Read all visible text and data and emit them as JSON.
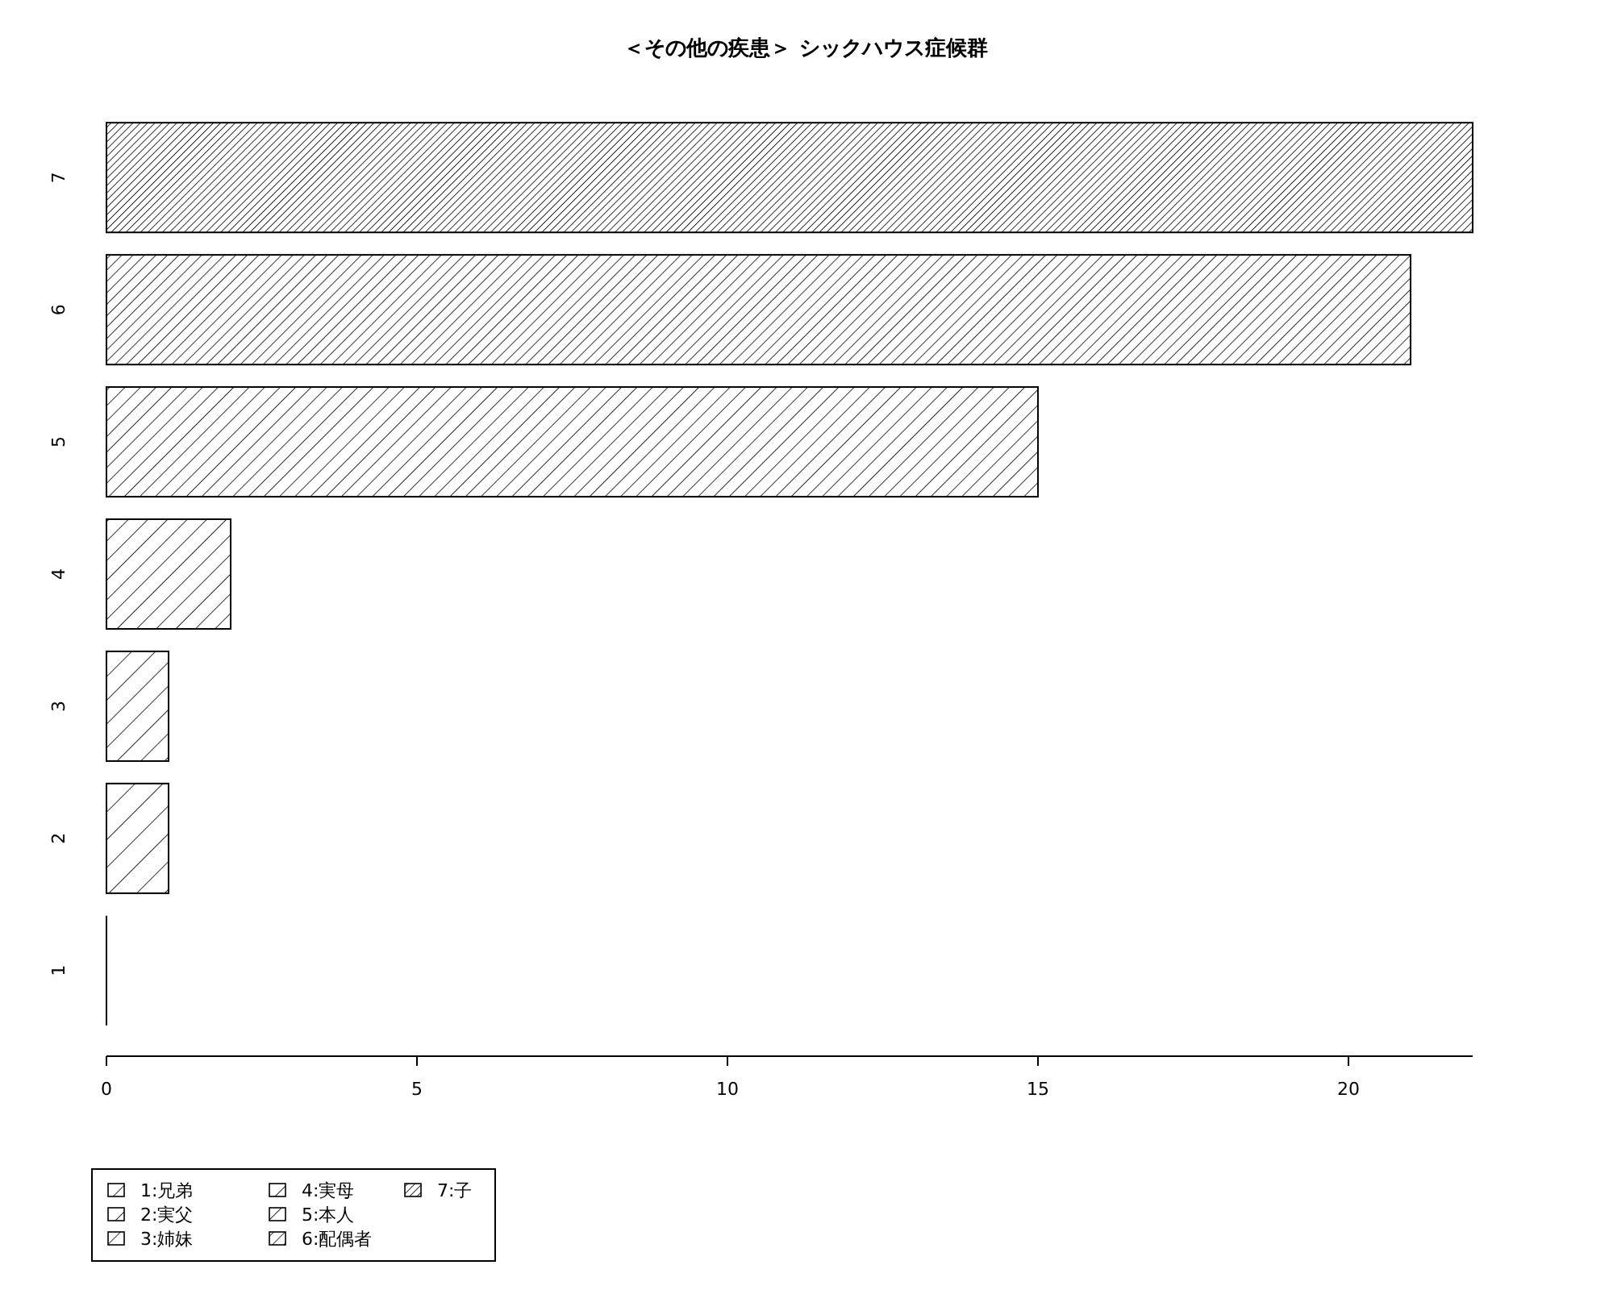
{
  "chart_data": {
    "type": "bar",
    "orientation": "horizontal",
    "title": "＜その他の疾患＞ シックハウス症候群",
    "categories": [
      "7",
      "6",
      "5",
      "4",
      "3",
      "2",
      "1"
    ],
    "series": [
      {
        "name": "1:兄弟",
        "color": "#000000",
        "values": [
          null,
          null,
          null,
          null,
          null,
          null,
          0
        ]
      },
      {
        "name": "2:実父",
        "color": "#000000",
        "values": [
          null,
          null,
          null,
          null,
          null,
          1,
          null
        ]
      },
      {
        "name": "3:姉妹",
        "color": "#000000",
        "values": [
          null,
          null,
          null,
          null,
          1,
          null,
          null
        ]
      },
      {
        "name": "4:実母",
        "color": "#000000",
        "values": [
          null,
          null,
          null,
          2,
          null,
          null,
          null
        ]
      },
      {
        "name": "5:本人",
        "color": "#000000",
        "values": [
          null,
          null,
          15,
          null,
          null,
          null,
          null
        ]
      },
      {
        "name": "6:配偶者",
        "color": "#000000",
        "values": [
          null,
          21,
          null,
          null,
          null,
          null,
          null
        ]
      },
      {
        "name": "7:子",
        "color": "#000000",
        "values": [
          22,
          null,
          null,
          null,
          null,
          null,
          null
        ]
      }
    ],
    "xlim": [
      0,
      22
    ],
    "xticks": [
      0,
      5,
      10,
      15,
      20
    ],
    "grid": false,
    "legend": "bottom left"
  }
}
